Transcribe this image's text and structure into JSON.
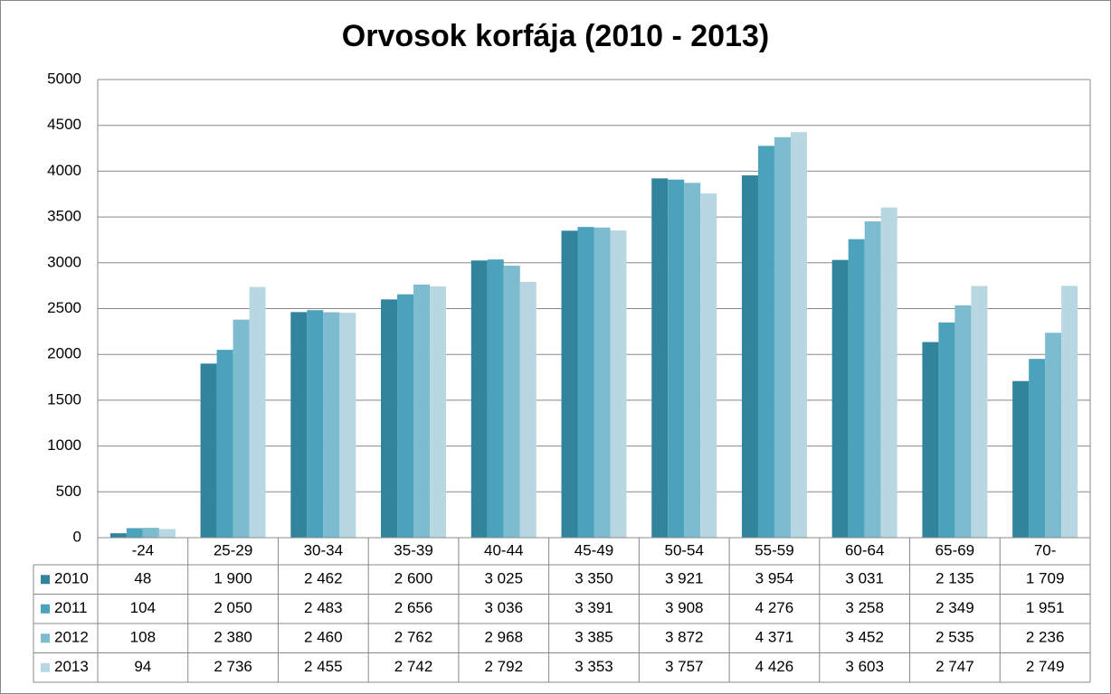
{
  "chart_data": {
    "type": "bar",
    "title": "Orvosok korfája (2010 - 2013)",
    "categories": [
      "-24",
      "25-29",
      "30-34",
      "35-39",
      "40-44",
      "45-49",
      "50-54",
      "55-59",
      "60-64",
      "65-69",
      "70-"
    ],
    "series": [
      {
        "name": "2010",
        "color": "#31849b",
        "values": [
          48,
          1900,
          2462,
          2600,
          3025,
          3350,
          3921,
          3954,
          3031,
          2135,
          1709
        ],
        "value_labels": [
          "48",
          "1 900",
          "2 462",
          "2 600",
          "3 025",
          "3 350",
          "3 921",
          "3 954",
          "3 031",
          "2 135",
          "1 709"
        ]
      },
      {
        "name": "2011",
        "color": "#4aa3bb",
        "values": [
          104,
          2050,
          2483,
          2656,
          3036,
          3391,
          3908,
          4276,
          3258,
          2349,
          1951
        ],
        "value_labels": [
          "104",
          "2 050",
          "2 483",
          "2 656",
          "3 036",
          "3 391",
          "3 908",
          "4 276",
          "3 258",
          "2 349",
          "1 951"
        ]
      },
      {
        "name": "2012",
        "color": "#7dbbcf",
        "values": [
          108,
          2380,
          2460,
          2762,
          2968,
          3385,
          3872,
          4371,
          3452,
          2535,
          2236
        ],
        "value_labels": [
          "108",
          "2 380",
          "2 460",
          "2 762",
          "2 968",
          "3 385",
          "3 872",
          "4 371",
          "3 452",
          "2 535",
          "2 236"
        ]
      },
      {
        "name": "2013",
        "color": "#b7d7e2",
        "values": [
          94,
          2736,
          2455,
          2742,
          2792,
          3353,
          3757,
          4426,
          3603,
          2747,
          2749
        ],
        "value_labels": [
          "94",
          "2 736",
          "2 455",
          "2 742",
          "2 792",
          "3 353",
          "3 757",
          "4 426",
          "3 603",
          "2 747",
          "2 749"
        ]
      }
    ],
    "ylim": [
      0,
      5000
    ],
    "yticks": [
      0,
      500,
      1000,
      1500,
      2000,
      2500,
      3000,
      3500,
      4000,
      4500,
      5000
    ],
    "grid": true
  }
}
